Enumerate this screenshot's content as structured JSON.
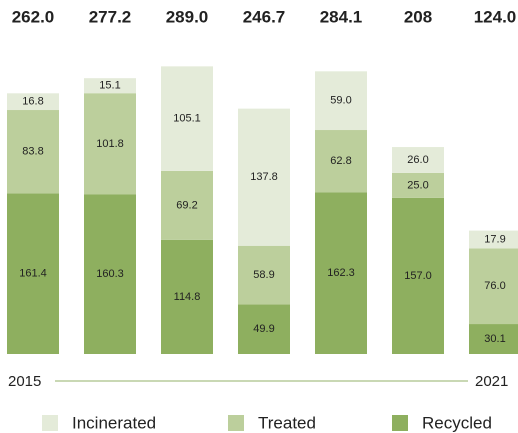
{
  "chart_data": {
    "type": "stacked_bar",
    "categories": [
      "2015",
      null,
      null,
      null,
      null,
      null,
      "2021"
    ],
    "totals": [
      262.0,
      277.2,
      289.0,
      246.7,
      284.1,
      208,
      124.0
    ],
    "total_labels": [
      "262.0",
      "277.2",
      "289.0",
      "246.7",
      "284.1",
      "208",
      "124.0"
    ],
    "series": [
      {
        "name": "Recycled",
        "color": "#8eaf5f",
        "values": [
          161.4,
          160.3,
          114.8,
          49.9,
          162.3,
          157.0,
          30.1
        ],
        "value_labels": [
          "161.4",
          "160.3",
          "114.8",
          "49.9",
          "162.3",
          "157.0",
          "30.1"
        ]
      },
      {
        "name": "Treated",
        "color": "#bccf9c",
        "values": [
          83.8,
          101.8,
          69.2,
          58.9,
          62.8,
          25.0,
          76.0
        ],
        "value_labels": [
          "83.8",
          "101.8",
          "69.2",
          "58.9",
          "62.8",
          "25.0",
          "76.0"
        ]
      },
      {
        "name": "Incinerated",
        "color": "#e4ebd9",
        "values": [
          16.8,
          15.1,
          105.1,
          137.8,
          59.0,
          26.0,
          17.9
        ],
        "value_labels": [
          "16.8",
          "15.1",
          "105.1",
          "137.8",
          "59.0",
          "26.0",
          "17.9"
        ]
      }
    ],
    "legend_order": [
      "Incinerated",
      "Treated",
      "Recycled"
    ]
  }
}
